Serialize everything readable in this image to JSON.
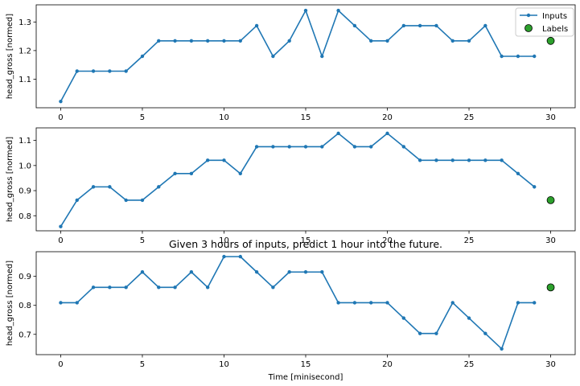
{
  "figure": {
    "overall_title": "Given 3 hours of inputs, predict 1 hour into the future.",
    "xlabel": "Time [minisecond]"
  },
  "legend": {
    "inputs_label": "Inputs",
    "labels_label": "Labels",
    "placement": "top-right"
  },
  "colors": {
    "inputs": "#1f77b4",
    "labels_fill": "#2ca02c",
    "labels_edge": "#000000"
  },
  "chart_data": [
    {
      "type": "line",
      "ylabel": "head_gross [normed]",
      "xlim": [
        -1.5,
        31.5
      ],
      "ylim": [
        1.0,
        1.36
      ],
      "xticks": [
        0,
        5,
        10,
        15,
        20,
        25,
        30
      ],
      "yticks": [
        1.1,
        1.2,
        1.3
      ],
      "ytick_labels": [
        "1.1",
        "1.2",
        "1.3"
      ],
      "show_legend": true,
      "inputs": {
        "x": [
          0,
          1,
          2,
          3,
          4,
          5,
          6,
          7,
          8,
          9,
          10,
          11,
          12,
          13,
          14,
          15,
          16,
          17,
          18,
          19,
          20,
          21,
          22,
          23,
          24,
          25,
          26,
          27,
          28,
          29
        ],
        "y": [
          1.022,
          1.128,
          1.128,
          1.128,
          1.128,
          1.18,
          1.234,
          1.234,
          1.234,
          1.234,
          1.234,
          1.234,
          1.287,
          1.18,
          1.234,
          1.34,
          1.18,
          1.34,
          1.287,
          1.234,
          1.234,
          1.287,
          1.287,
          1.287,
          1.234,
          1.234,
          1.287,
          1.18,
          1.18,
          1.18
        ]
      },
      "labels": {
        "x": [
          30
        ],
        "y": [
          1.234
        ]
      }
    },
    {
      "type": "line",
      "ylabel": "head_gross [normed]",
      "xlim": [
        -1.5,
        31.5
      ],
      "ylim": [
        0.74,
        1.15
      ],
      "xticks": [
        0,
        5,
        10,
        15,
        20,
        25,
        30
      ],
      "yticks": [
        0.8,
        0.9,
        1.0,
        1.1
      ],
      "ytick_labels": [
        "0.8",
        "0.9",
        "1.0",
        "1.1"
      ],
      "show_legend": false,
      "inputs": {
        "x": [
          0,
          1,
          2,
          3,
          4,
          5,
          6,
          7,
          8,
          9,
          10,
          11,
          12,
          13,
          14,
          15,
          16,
          17,
          18,
          19,
          20,
          21,
          22,
          23,
          24,
          25,
          26,
          27,
          28,
          29
        ],
        "y": [
          0.757,
          0.862,
          0.915,
          0.915,
          0.862,
          0.862,
          0.915,
          0.968,
          0.968,
          1.021,
          1.021,
          0.968,
          1.075,
          1.075,
          1.075,
          1.075,
          1.075,
          1.128,
          1.075,
          1.075,
          1.128,
          1.075,
          1.021,
          1.021,
          1.021,
          1.021,
          1.021,
          1.021,
          0.968,
          0.915
        ]
      },
      "labels": {
        "x": [
          30
        ],
        "y": [
          0.862
        ]
      }
    },
    {
      "type": "line",
      "ylabel": "head_gross [normed]",
      "xlim": [
        -1.5,
        31.5
      ],
      "ylim": [
        0.63,
        0.985
      ],
      "xticks": [
        0,
        5,
        10,
        15,
        20,
        25,
        30
      ],
      "yticks": [
        0.7,
        0.8,
        0.9
      ],
      "ytick_labels": [
        "0.7",
        "0.8",
        "0.9"
      ],
      "show_legend": false,
      "inputs": {
        "x": [
          0,
          1,
          2,
          3,
          4,
          5,
          6,
          7,
          8,
          9,
          10,
          11,
          12,
          13,
          14,
          15,
          16,
          17,
          18,
          19,
          20,
          21,
          22,
          23,
          24,
          25,
          26,
          27,
          28,
          29
        ],
        "y": [
          0.809,
          0.809,
          0.862,
          0.862,
          0.862,
          0.915,
          0.862,
          0.862,
          0.915,
          0.862,
          0.968,
          0.968,
          0.915,
          0.862,
          0.915,
          0.915,
          0.915,
          0.809,
          0.809,
          0.809,
          0.809,
          0.756,
          0.703,
          0.703,
          0.809,
          0.756,
          0.703,
          0.65,
          0.809,
          0.809
        ]
      },
      "labels": {
        "x": [
          30
        ],
        "y": [
          0.862
        ]
      }
    }
  ]
}
